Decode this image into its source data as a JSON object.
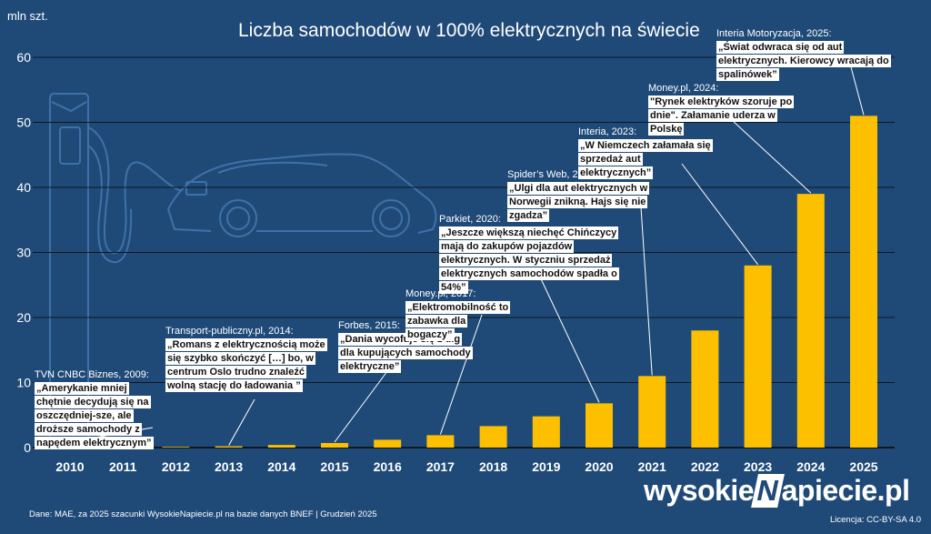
{
  "title": "Liczba samochodów w 100% elektrycznych na świecie",
  "y_unit": "mln szt.",
  "source": "Dane: MAE, za 2025 szacunki WysokieNapiecie.pl na bazie danych BNEF  |  Grudzień 2025",
  "brand": {
    "part1": "wysokie",
    "part2": "N",
    "part3": "apiecie.pl"
  },
  "license": "Licencja: CC-BY-SA 4.0",
  "colors": {
    "background": "#1f4a78",
    "bar": "#fcc000",
    "text": "#ffffff",
    "grid": "#0e1620"
  },
  "chart_data": {
    "type": "bar",
    "title": "Liczba samochodów w 100% elektrycznych na świecie",
    "xlabel": "",
    "ylabel": "mln szt.",
    "ylim": [
      0,
      60
    ],
    "yticks": [
      0,
      10,
      20,
      30,
      40,
      50,
      60
    ],
    "grid": true,
    "categories": [
      "2010",
      "2011",
      "2012",
      "2013",
      "2014",
      "2015",
      "2016",
      "2017",
      "2018",
      "2019",
      "2020",
      "2021",
      "2022",
      "2023",
      "2024",
      "2025"
    ],
    "values": [
      0.02,
      0.05,
      0.11,
      0.2,
      0.4,
      0.7,
      1.2,
      1.9,
      3.3,
      4.8,
      6.8,
      11.0,
      18.0,
      28.0,
      39.0,
      51.0
    ]
  },
  "annotations": [
    {
      "source": "TVN CNBC Biznes, 2009:",
      "quote": "„Amerykanie mniej chętnie decydują się na oszczędniej-sze, ale droższe samochody z napędem elektrycznym”",
      "year": "2010"
    },
    {
      "source": "Transport-publiczny.pl, 2014:",
      "quote": "„Romans z elektrycznością może się szybko skończyć […] bo, w centrum Oslo trudno znaleźć wolną stację do ładowania ”",
      "year": "2013"
    },
    {
      "source": "Forbes, 2015:",
      "quote": "„Dania wycofuje się z ulg dla kupujących samochody elektryczne”",
      "year": "2015"
    },
    {
      "source": "Money.pl, 2017:",
      "quote": "„Elektromobilność to zabawka dla bogaczy”",
      "year": "2017"
    },
    {
      "source": "Parkiet, 2020:",
      "quote": "„Jeszcze większą niechęć Chińczycy mają do zakupów pojazdów elektrycznych. W styczniu sprzedaż elektrycznych samochodów spadła o 54%”",
      "year": "2020"
    },
    {
      "source": "Spider’s Web, 2021:",
      "quote": "„Ulgi dla aut elektrycznych w Norwegii znikną. Hajs się nie zgadza”",
      "year": "2021"
    },
    {
      "source": "Interia, 2023:",
      "quote": "„W Niemczech załamała się sprzedaż aut elektrycznych”",
      "year": "2023"
    },
    {
      "source": "Money.pl, 2024:",
      "quote": "\"Rynek elektryków szoruje po dnie\". Załamanie uderza w Polskę",
      "year": "2024"
    },
    {
      "source": "Interia Motoryzacja, 2025:",
      "quote": "„Świat odwraca się od aut elektrycznych. Kierowcy wracają do spalinówek”",
      "year": "2025"
    }
  ]
}
